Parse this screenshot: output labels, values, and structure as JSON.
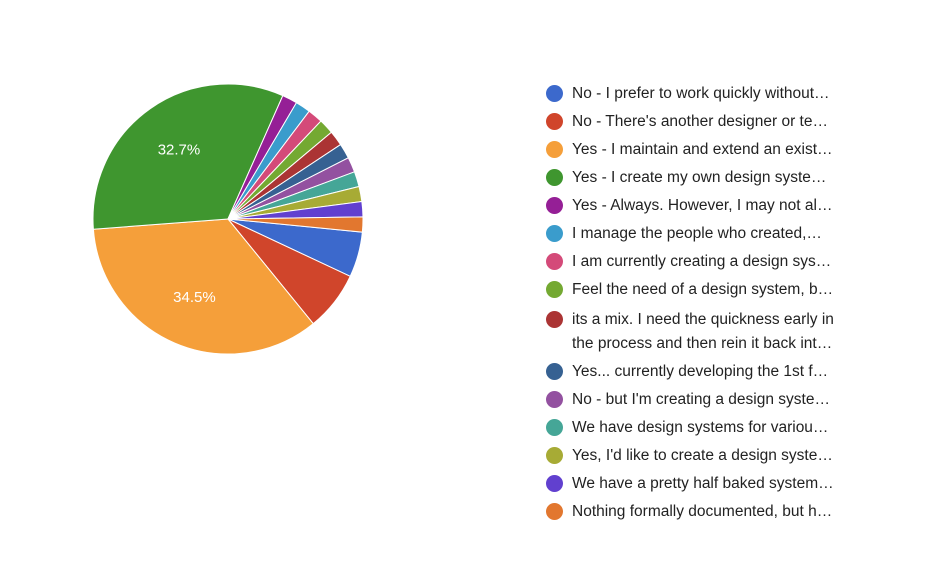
{
  "chart_data": {
    "type": "pie",
    "title": "",
    "legend_position": "right",
    "slices": [
      {
        "label": "No - I prefer to work quickly without…",
        "value": 5.4,
        "color": "#3c69cc",
        "data_label": ""
      },
      {
        "label": "No - There's another designer or te…",
        "value": 7.1,
        "color": "#d0452b",
        "data_label": ""
      },
      {
        "label": "Yes - I maintain and extend an exist…",
        "value": 34.5,
        "color": "#f59f3a",
        "data_label": "34.5%"
      },
      {
        "label": "Yes - I create my own design syste…",
        "value": 32.7,
        "color": "#3f962f",
        "data_label": "32.7%"
      },
      {
        "label": "Yes - Always. However, I may not al…",
        "value": 1.8,
        "color": "#951f96",
        "data_label": ""
      },
      {
        "label": "I manage the people who created,…",
        "value": 1.8,
        "color": "#3a9ccc",
        "data_label": ""
      },
      {
        "label": "I am currently creating a design sys…",
        "value": 1.8,
        "color": "#d44a79",
        "data_label": ""
      },
      {
        "label": "Feel the need of a design system, b…",
        "value": 1.8,
        "color": "#74a932",
        "data_label": ""
      },
      {
        "label": [
          "its a mix. I need the quickness early in",
          "the process and then rein it back int…"
        ],
        "value": 1.8,
        "color": "#ab3434",
        "data_label": ""
      },
      {
        "label": "Yes... currently developing the 1st f…",
        "value": 1.8,
        "color": "#366192",
        "data_label": ""
      },
      {
        "label": "No - but I'm creating a design syste…",
        "value": 1.8,
        "color": "#9351a0",
        "data_label": ""
      },
      {
        "label": "We have design systems for variou…",
        "value": 1.8,
        "color": "#45a697",
        "data_label": ""
      },
      {
        "label": "Yes, I'd like to create a design syste…",
        "value": 1.8,
        "color": "#a7ab35",
        "data_label": ""
      },
      {
        "label": "We have a pretty half baked system…",
        "value": 1.8,
        "color": "#6140cf",
        "data_label": ""
      },
      {
        "label": "Nothing formally documented, but h…",
        "value": 1.8,
        "color": "#e2772f",
        "data_label": ""
      }
    ]
  }
}
